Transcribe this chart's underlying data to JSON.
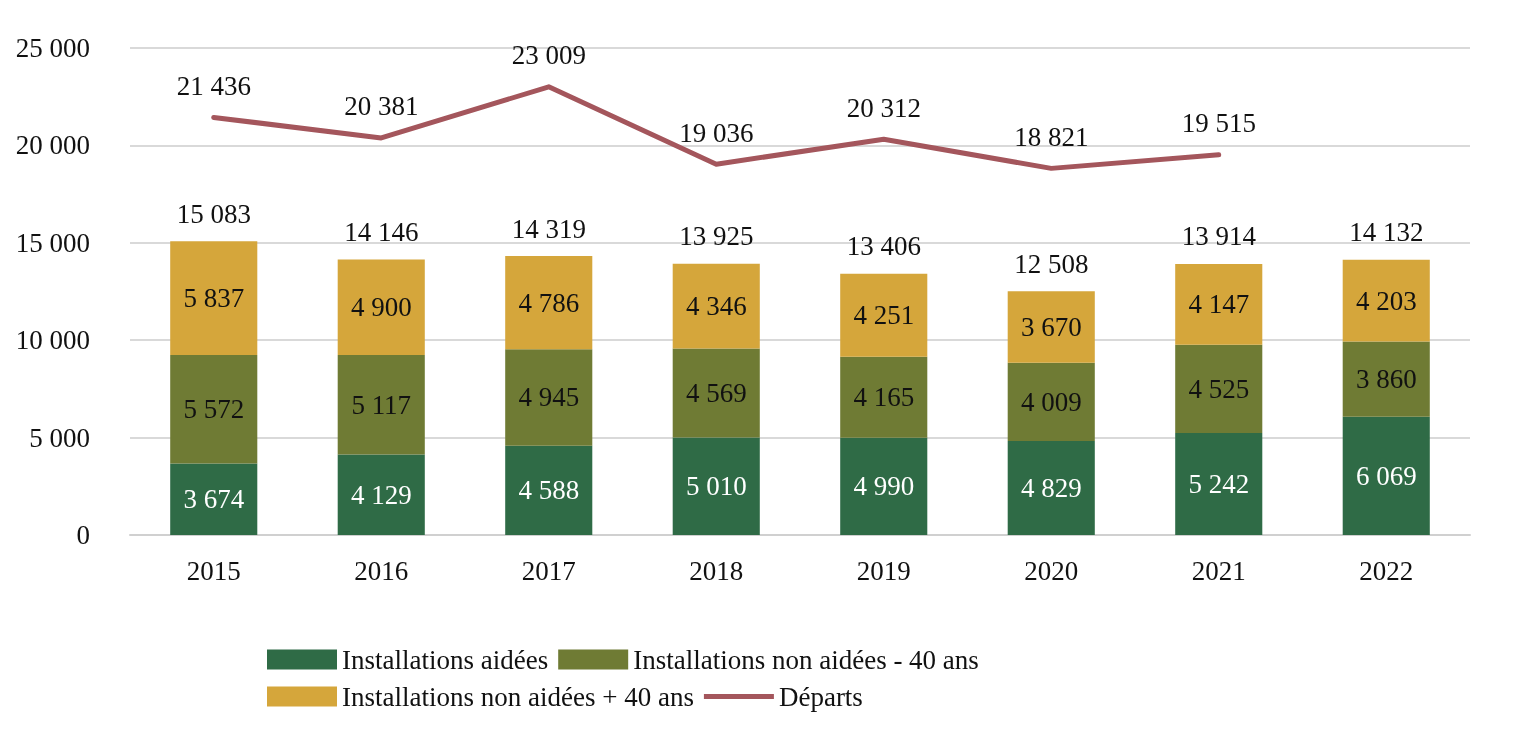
{
  "chart_data": {
    "type": "bar",
    "stacked": true,
    "categories": [
      "2015",
      "2016",
      "2017",
      "2018",
      "2019",
      "2020",
      "2021",
      "2022"
    ],
    "series": [
      {
        "name": "Installations aidées",
        "color": "#2f6b46",
        "values": [
          3674,
          4129,
          4588,
          5010,
          4990,
          4829,
          5242,
          6069
        ],
        "value_labels": [
          "3 674",
          "4 129",
          "4 588",
          "5 010",
          "4 990",
          "4 829",
          "5 242",
          "6 069"
        ]
      },
      {
        "name": "Installations non aidées - 40 ans",
        "color": "#6f7b34",
        "values": [
          5572,
          5117,
          4945,
          4569,
          4165,
          4009,
          4525,
          3860
        ],
        "value_labels": [
          "5 572",
          "5 117",
          "4 945",
          "4 569",
          "4 165",
          "4 009",
          "4 525",
          "3 860"
        ]
      },
      {
        "name": "Installations non aidées + 40 ans",
        "color": "#d5a63b",
        "values": [
          5837,
          4900,
          4786,
          4346,
          4251,
          3670,
          4147,
          4203
        ],
        "value_labels": [
          "5 837",
          "4 900",
          "4 786",
          "4 346",
          "4 251",
          "3 670",
          "4 147",
          "4 203"
        ]
      },
      {
        "name": "Départs",
        "type": "line",
        "color": "#a4565c",
        "values": [
          21436,
          20381,
          23009,
          19036,
          20312,
          18821,
          19515,
          null
        ],
        "value_labels": [
          "21 436",
          "20 381",
          "23 009",
          "19 036",
          "20 312",
          "18 821",
          "19 515",
          null
        ]
      }
    ],
    "totals": [
      "15 083",
      "14 146",
      "14 319",
      "13 925",
      "13 406",
      "12 508",
      "13 914",
      "14 132"
    ],
    "ylim": [
      0,
      25000
    ],
    "yticks": [
      {
        "value": 0,
        "label": "0"
      },
      {
        "value": 5000,
        "label": "5 000"
      },
      {
        "value": 10000,
        "label": "10 000"
      },
      {
        "value": 15000,
        "label": "15 000"
      },
      {
        "value": 20000,
        "label": "20 000"
      },
      {
        "value": 25000,
        "label": "25 000"
      }
    ],
    "grid": "y",
    "legend": "bottom",
    "marker": "none",
    "line_style": "solid"
  }
}
